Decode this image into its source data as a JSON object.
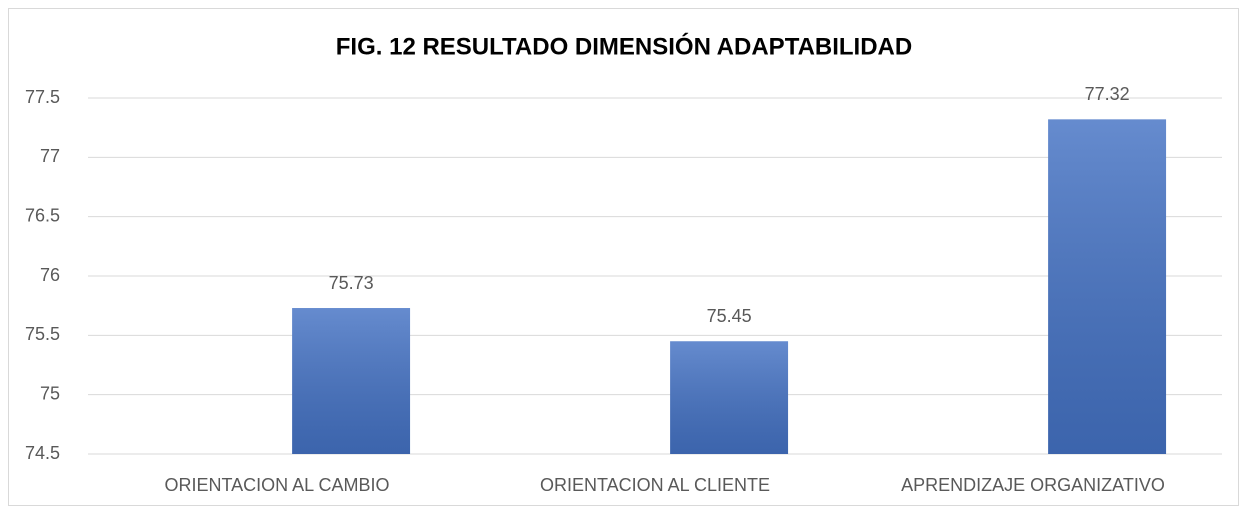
{
  "chart_data": {
    "type": "bar",
    "title": "FIG. 12 RESULTADO DIMENSIÓN ADAPTABILIDAD",
    "categories": [
      "ORIENTACION AL CAMBIO",
      "ORIENTACION AL CLIENTE",
      "APRENDIZAJE ORGANIZATIVO"
    ],
    "values": [
      75.73,
      75.45,
      77.32
    ],
    "color": "#4472c4",
    "ylim": [
      74.5,
      77.5
    ],
    "yticks": [
      74.5,
      75,
      75.5,
      76,
      76.5,
      77,
      77.5
    ],
    "grid": true
  }
}
